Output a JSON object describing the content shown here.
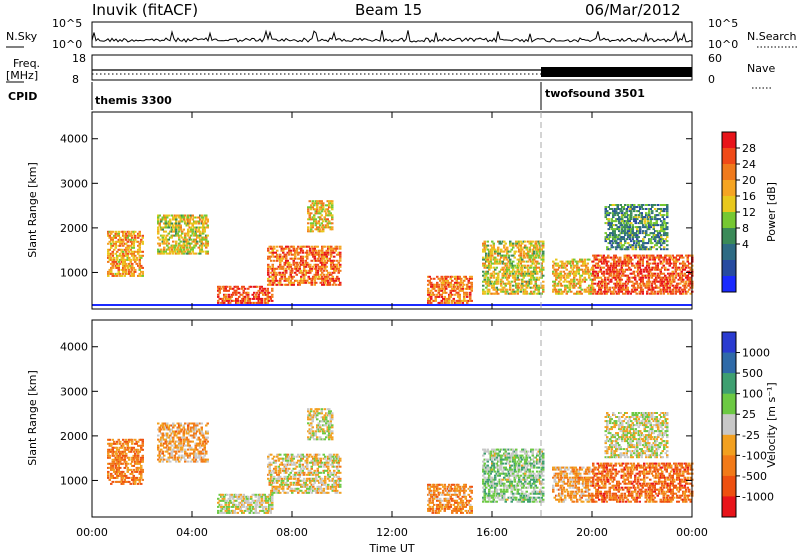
{
  "header": {
    "station": "Inuvik (fitACF)",
    "beam": "Beam 15",
    "date": "06/Mar/2012"
  },
  "strips": {
    "nsky_label": "N.Sky",
    "nsearch_label": "N.Search",
    "nsky_ticks": [
      "10^5",
      "10^0"
    ],
    "nsearch_ticks": [
      "10^5",
      "10^0"
    ],
    "freq_label_line1": "Freq.",
    "freq_label_line2": "[MHz]",
    "freq_ticks": [
      "18",
      "8"
    ],
    "nave_label": "Nave",
    "nave_ticks": [
      "60",
      "0"
    ],
    "cpid_label": "CPID"
  },
  "cpid_segments": [
    {
      "name": "themis 3300",
      "start_hour": 0
    },
    {
      "name": "twofsound 3501",
      "start_hour": 18
    }
  ],
  "power_colorbar": {
    "label": "Power [dB]",
    "ticks": [
      "28",
      "24",
      "20",
      "16",
      "12",
      "8",
      "4"
    ],
    "colors": [
      "#e8141a",
      "#f04a18",
      "#f07a1c",
      "#f5a422",
      "#e8c81c",
      "#76c832",
      "#3a8a58",
      "#2e6b84",
      "#274ba0",
      "#1a2aff"
    ]
  },
  "velocity_colorbar": {
    "label": "Velocity [m s⁻¹]",
    "ticks": [
      "1000",
      "500",
      "100",
      "25",
      "-25",
      "-100",
      "-500",
      "-1000"
    ],
    "colors": [
      "#2a3bd0",
      "#2f6aa8",
      "#3e9f70",
      "#6cc943",
      "#c8c8c8",
      "#f2a020",
      "#f27a18",
      "#ee5010",
      "#e8141a"
    ]
  },
  "x_axis": {
    "label": "Time UT",
    "ticks": [
      "00:00",
      "04:00",
      "08:00",
      "12:00",
      "16:00",
      "20:00",
      "00:00"
    ]
  },
  "y_axis": {
    "label": "Slant Range [km]",
    "ticks": [
      "4000",
      "3000",
      "2000",
      "1000"
    ]
  },
  "chart_data": [
    {
      "type": "heatmap",
      "title": "Power",
      "xlabel": "Time UT",
      "ylabel": "Slant Range [km]",
      "x_range_hours": [
        0,
        24
      ],
      "y_range_km": [
        180,
        4600
      ],
      "colorbar_label": "Power [dB]",
      "colorbar_range": [
        0,
        32
      ],
      "echo_regions": [
        {
          "t0": 0.6,
          "t1": 2.0,
          "r0": 900,
          "r1": 1900,
          "value_db": 22
        },
        {
          "t0": 2.6,
          "t1": 4.6,
          "r0": 1400,
          "r1": 2300,
          "value_db": 18
        },
        {
          "t0": 5.0,
          "t1": 7.2,
          "r0": 250,
          "r1": 700,
          "value_db": 28
        },
        {
          "t0": 7.0,
          "t1": 9.9,
          "r0": 700,
          "r1": 1600,
          "value_db": 26
        },
        {
          "t0": 8.6,
          "t1": 9.6,
          "r0": 1900,
          "r1": 2600,
          "value_db": 20
        },
        {
          "t0": 13.4,
          "t1": 15.2,
          "r0": 250,
          "r1": 900,
          "value_db": 26
        },
        {
          "t0": 15.6,
          "t1": 18.0,
          "r0": 500,
          "r1": 1700,
          "value_db": 18
        },
        {
          "t0": 18.4,
          "t1": 20.0,
          "r0": 500,
          "r1": 1300,
          "value_db": 20
        },
        {
          "t0": 20.0,
          "t1": 24.0,
          "r0": 500,
          "r1": 1400,
          "value_db": 28
        },
        {
          "t0": 20.5,
          "t1": 23.0,
          "r0": 1500,
          "r1": 2500,
          "value_db": 10
        }
      ]
    },
    {
      "type": "heatmap",
      "title": "Velocity",
      "xlabel": "Time UT",
      "ylabel": "Slant Range [km]",
      "x_range_hours": [
        0,
        24
      ],
      "y_range_km": [
        180,
        4600
      ],
      "colorbar_label": "Velocity [m s⁻¹]",
      "colorbar_range": [
        -1000,
        1000
      ],
      "echo_regions": [
        {
          "t0": 0.6,
          "t1": 2.0,
          "r0": 900,
          "r1": 1900,
          "value_ms": -500
        },
        {
          "t0": 2.6,
          "t1": 4.6,
          "r0": 1400,
          "r1": 2300,
          "value_ms": -300
        },
        {
          "t0": 5.0,
          "t1": 7.2,
          "r0": 250,
          "r1": 700,
          "value_ms": 0
        },
        {
          "t0": 7.0,
          "t1": 9.9,
          "r0": 700,
          "r1": 1600,
          "value_ms": -100
        },
        {
          "t0": 8.6,
          "t1": 9.6,
          "r0": 1900,
          "r1": 2600,
          "value_ms": 0
        },
        {
          "t0": 13.4,
          "t1": 15.2,
          "r0": 250,
          "r1": 900,
          "value_ms": -400
        },
        {
          "t0": 15.6,
          "t1": 18.0,
          "r0": 500,
          "r1": 1700,
          "value_ms": 200
        },
        {
          "t0": 18.4,
          "t1": 20.0,
          "r0": 500,
          "r1": 1300,
          "value_ms": -300
        },
        {
          "t0": 20.0,
          "t1": 24.0,
          "r0": 500,
          "r1": 1400,
          "value_ms": -600
        },
        {
          "t0": 20.5,
          "t1": 23.0,
          "r0": 1500,
          "r1": 2500,
          "value_ms": 0
        }
      ]
    }
  ]
}
